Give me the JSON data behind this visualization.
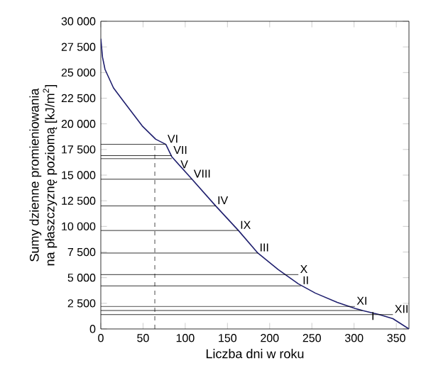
{
  "chart_data": {
    "type": "line",
    "xlabel": "Liczba dni w roku",
    "ylabel": [
      "Sumy dzienne promieniowania",
      "na płaszczyznę poziomą  [kJ/m$^{2}$]"
    ],
    "xlim": [
      0,
      365
    ],
    "ylim": [
      0,
      30000
    ],
    "xticks": [
      0,
      50,
      100,
      150,
      200,
      250,
      300,
      350
    ],
    "yticks": [
      0,
      {
        "value": 2500,
        "label": "2 500"
      },
      {
        "value": 5000,
        "label": "5 000"
      },
      {
        "value": 7500,
        "label": "7 500"
      },
      {
        "value": 10000,
        "label": "10 000"
      },
      {
        "value": 12500,
        "label": "12 500"
      },
      {
        "value": 15000,
        "label": "15 000"
      },
      {
        "value": 17500,
        "label": "17 500"
      },
      {
        "value": 20000,
        "label": "20 000"
      },
      {
        "value": 22500,
        "label": "22 500"
      },
      {
        "value": 25000,
        "label": "25 000"
      },
      {
        "value": 27500,
        "label": "27 500"
      },
      {
        "value": 30000,
        "label": "30 000"
      }
    ],
    "grid": false,
    "marker": "none",
    "series": [
      {
        "color": "#1f1f6e",
        "line_style": "solid",
        "x": [
          0,
          2,
          5,
          15,
          26,
          49,
          65,
          77,
          84,
          108,
          136,
          163,
          186,
          210,
          234,
          254,
          280,
          301,
          310,
          330,
          346,
          365
        ],
        "values": [
          28300,
          26500,
          25300,
          23500,
          22300,
          19800,
          18500,
          18000,
          16800,
          14600,
          12000,
          9600,
          7400,
          5800,
          4400,
          3500,
          2600,
          2000,
          1800,
          1400,
          1000,
          0
        ]
      },
      {
        "color": "#000000",
        "line_style": "dashed",
        "x": [
          64,
          64
        ],
        "values": [
          0,
          18000
        ]
      }
    ],
    "annotations": [
      {
        "text": "VI",
        "x": 77,
        "y": 18000
      },
      {
        "text": "VII",
        "x": 84,
        "y": 16900
      },
      {
        "text": "V",
        "x": 84,
        "y": 16600
      },
      {
        "text": "VIII",
        "x": 108,
        "y": 14600
      },
      {
        "text": "IV",
        "x": 136,
        "y": 12000
      },
      {
        "text": "IX",
        "x": 163,
        "y": 9600
      },
      {
        "text": "III",
        "x": 186,
        "y": 7400
      },
      {
        "text": "X",
        "x": 234,
        "y": 5300
      },
      {
        "text": "II",
        "x": 237,
        "y": 4200
      },
      {
        "text": "XI",
        "x": 301,
        "y": 2200
      },
      {
        "text": "I",
        "x": 310,
        "y": 1800
      },
      {
        "text": "XII",
        "x": 346,
        "y": 1400
      }
    ]
  }
}
